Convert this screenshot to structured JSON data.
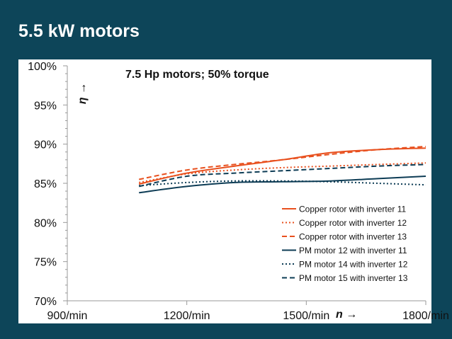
{
  "slide": {
    "title": "5.5 kW motors"
  },
  "chart_data": {
    "type": "line",
    "title": "7.5 Hp motors; 50% torque",
    "xlabel": "n →",
    "ylabel": "η →",
    "x": [
      1080,
      1200,
      1320,
      1440,
      1560,
      1680,
      1800
    ],
    "x_ticks": [
      900,
      1200,
      1500,
      1800
    ],
    "x_tick_labels": [
      "900/min",
      "1200/min",
      "1500/min",
      "1800/min"
    ],
    "y_ticks": [
      70,
      75,
      80,
      85,
      90,
      95,
      100
    ],
    "y_tick_labels": [
      "70%",
      "75%",
      "80%",
      "85%",
      "90%",
      "95%",
      "100%"
    ],
    "xlim": [
      900,
      1800
    ],
    "ylim": [
      70,
      100
    ],
    "legend_position": "bottom-right",
    "series": [
      {
        "name": "Copper rotor with inverter 11",
        "color": "#e8501e",
        "dash": "solid",
        "values": [
          84.9,
          86.3,
          87.2,
          88.0,
          88.9,
          89.3,
          89.5
        ]
      },
      {
        "name": "Copper rotor with inverter 12",
        "color": "#e8501e",
        "dash": "dotted",
        "values": [
          85.1,
          86.2,
          86.7,
          87.0,
          87.2,
          87.4,
          87.6
        ]
      },
      {
        "name": "Copper rotor with inverter 13",
        "color": "#e8501e",
        "dash": "dashed",
        "values": [
          85.5,
          86.7,
          87.4,
          88.0,
          88.7,
          89.3,
          89.7
        ]
      },
      {
        "name": "PM motor 12 with inverter 11",
        "color": "#0d3c55",
        "dash": "solid",
        "values": [
          83.8,
          84.6,
          85.1,
          85.2,
          85.3,
          85.6,
          85.9
        ]
      },
      {
        "name": "PM motor 14 with inverter 12",
        "color": "#0d3c55",
        "dash": "dotted",
        "values": [
          84.7,
          85.1,
          85.3,
          85.3,
          85.2,
          85.0,
          84.8
        ]
      },
      {
        "name": "PM motor 15 with inverter 13",
        "color": "#0d3c55",
        "dash": "dashed",
        "values": [
          84.6,
          85.9,
          86.3,
          86.6,
          86.9,
          87.2,
          87.4
        ]
      }
    ]
  }
}
